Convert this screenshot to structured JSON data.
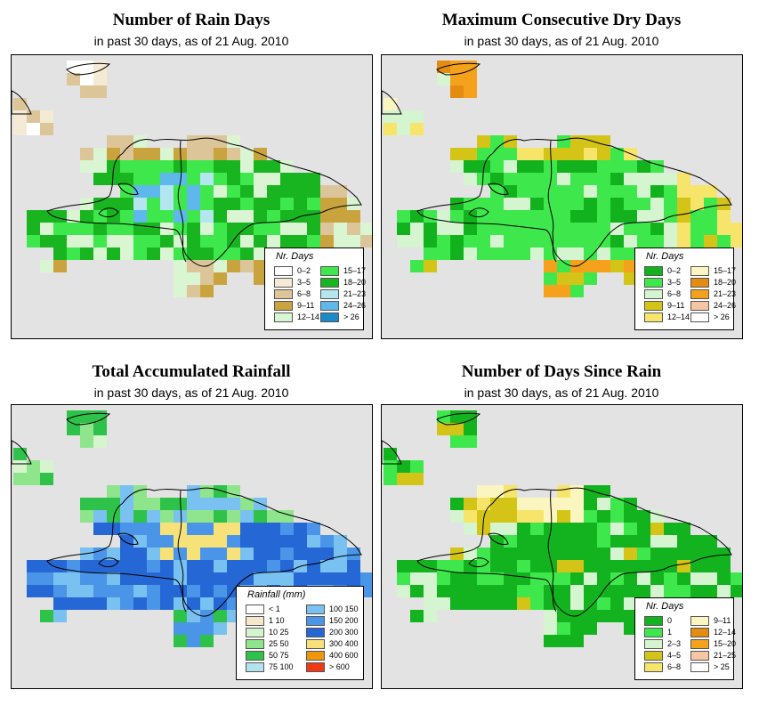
{
  "panels": [
    {
      "title": "Number of Rain Days",
      "subtitle": "in past 30 days, as of  21 Aug. 2010",
      "legend": {
        "title": "Nr. Days",
        "items": [
          {
            "label": "0–2",
            "color": "#ffffff"
          },
          {
            "label": "3–5",
            "color": "#f5ead4"
          },
          {
            "label": "6–8",
            "color": "#ddc59a"
          },
          {
            "label": "9–11",
            "color": "#c9a43e"
          },
          {
            "label": "12–14",
            "color": "#d9f5d2"
          },
          {
            "label": "15–17",
            "color": "#3ee84c"
          },
          {
            "label": "18–20",
            "color": "#18b521"
          },
          {
            "label": "21–23",
            "color": "#b4e6f0"
          },
          {
            "label": "24–26",
            "color": "#5fb8ec"
          },
          {
            "label": "> 26",
            "color": "#1a8ac8"
          }
        ]
      }
    },
    {
      "title": "Maximum Consecutive Dry Days",
      "subtitle": "in past 30 days, as of  21 Aug. 2010",
      "legend": {
        "title": "Nr. Days",
        "items": [
          {
            "label": "0–2",
            "color": "#12b21e"
          },
          {
            "label": "3–5",
            "color": "#3ee84c"
          },
          {
            "label": "6–8",
            "color": "#d4f5cf"
          },
          {
            "label": "9–11",
            "color": "#d4c417"
          },
          {
            "label": "12–14",
            "color": "#f7e46a"
          },
          {
            "label": "15–17",
            "color": "#fbf6c0"
          },
          {
            "label": "18–20",
            "color": "#e48c10"
          },
          {
            "label": "21–23",
            "color": "#f4a11c"
          },
          {
            "label": "24–26",
            "color": "#f6c6a4"
          },
          {
            "label": "> 26",
            "color": "#ffffff"
          }
        ]
      }
    },
    {
      "title": "Total Accumulated Rainfall",
      "subtitle": "in past 30 days, as of  21 Aug. 2010",
      "legend": {
        "title": "Rainfall (mm)",
        "items": [
          {
            "label": "< 1",
            "color": "#ffffff"
          },
          {
            "label": "1    10",
            "color": "#f5e6cc"
          },
          {
            "label": "10    25",
            "color": "#d6f5cf"
          },
          {
            "label": "25    50",
            "color": "#8ee58c"
          },
          {
            "label": "50    75",
            "color": "#2fc24a"
          },
          {
            "label": "75  100",
            "color": "#b3e3ef"
          },
          {
            "label": "100  150",
            "color": "#79c1f0"
          },
          {
            "label": "150  200",
            "color": "#4a95e8"
          },
          {
            "label": "200  300",
            "color": "#2567d4"
          },
          {
            "label": "300  400",
            "color": "#f7e27a"
          },
          {
            "label": "400  600",
            "color": "#f0960e"
          },
          {
            "label": "> 600",
            "color": "#ef3a16"
          }
        ]
      }
    },
    {
      "title": "Number of Days Since Rain",
      "subtitle": "in past 30 days, as of  21 Aug. 2010",
      "legend": {
        "title": "Nr. Days",
        "items": [
          {
            "label": "0",
            "color": "#13b31f"
          },
          {
            "label": "1",
            "color": "#3ee84c"
          },
          {
            "label": "2–3",
            "color": "#d4f5cf"
          },
          {
            "label": "4–5",
            "color": "#d4c417"
          },
          {
            "label": "6–8",
            "color": "#f7e46a"
          },
          {
            "label": "9–11",
            "color": "#fbf6c0"
          },
          {
            "label": "12–14",
            "color": "#e48c10"
          },
          {
            "label": "15–20",
            "color": "#f4a11c"
          },
          {
            "label": "21–25",
            "color": "#f6c6a4"
          },
          {
            "label": "> 25",
            "color": "#ffffff"
          }
        ]
      }
    }
  ]
}
